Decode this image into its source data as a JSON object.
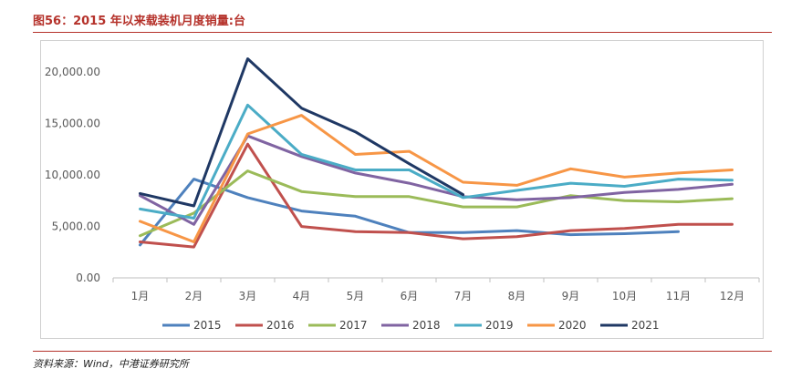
{
  "header": {
    "title": "图56：2015 年以来载装机月度销量:台"
  },
  "footer": {
    "source": "资料来源：Wind，中港证券研究所"
  },
  "chart_data": {
    "type": "line",
    "title": "",
    "xlabel": "",
    "ylabel": "",
    "ylim": [
      0,
      22500
    ],
    "y_ticks": [
      0,
      5000,
      10000,
      15000,
      20000
    ],
    "y_tick_labels": [
      "0.00",
      "5,000.00",
      "10,000.00",
      "15,000.00",
      "20,000.00"
    ],
    "categories": [
      "1月",
      "2月",
      "3月",
      "4月",
      "5月",
      "6月",
      "7月",
      "8月",
      "9月",
      "10月",
      "11月",
      "12月"
    ],
    "grid": false,
    "legend_position": "bottom",
    "series": [
      {
        "name": "2015",
        "color": "#4e81bd",
        "values": [
          3200,
          9600,
          7800,
          6500,
          6000,
          4400,
          4400,
          4600,
          4200,
          4300,
          4500,
          null
        ]
      },
      {
        "name": "2016",
        "color": "#c0504d",
        "values": [
          3500,
          3000,
          13000,
          5000,
          4500,
          4400,
          3800,
          4000,
          4600,
          4800,
          5200,
          5200
        ]
      },
      {
        "name": "2017",
        "color": "#9bbb59",
        "values": [
          4100,
          6300,
          10400,
          8400,
          7900,
          7900,
          6900,
          6900,
          8000,
          7500,
          7400,
          7700
        ]
      },
      {
        "name": "2018",
        "color": "#8064a2",
        "values": [
          8000,
          5200,
          13800,
          11800,
          10200,
          9200,
          7900,
          7600,
          7800,
          8300,
          8600,
          9100
        ]
      },
      {
        "name": "2019",
        "color": "#4bacc6",
        "values": [
          6700,
          5800,
          16800,
          12000,
          10500,
          10500,
          7800,
          8500,
          9200,
          8900,
          9600,
          9500
        ]
      },
      {
        "name": "2020",
        "color": "#f79646",
        "values": [
          5500,
          3500,
          14000,
          15800,
          12000,
          12300,
          9300,
          9000,
          10600,
          9800,
          10200,
          10500
        ]
      },
      {
        "name": "2021",
        "color": "#1f3864",
        "values": [
          8200,
          7000,
          21300,
          16500,
          14200,
          11100,
          8100,
          null,
          null,
          null,
          null,
          null
        ]
      }
    ]
  }
}
